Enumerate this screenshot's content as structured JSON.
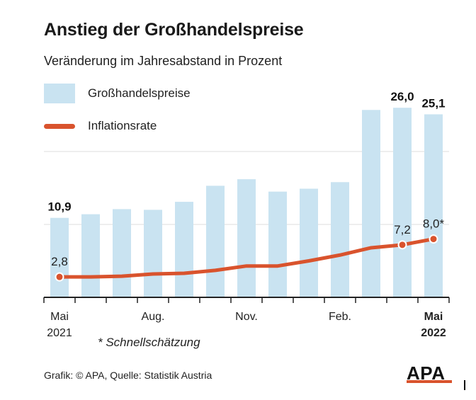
{
  "header": {
    "title": "Anstieg der Großhandelspreise",
    "subtitle": "Veränderung im Jahresabstand in Prozent"
  },
  "legend": {
    "bars_label": "Großhandelspreise",
    "line_label": "Inflationsrate"
  },
  "footnote": "* Schnellschätzung",
  "source": "Grafik: © APA, Quelle: Statistik Austria",
  "logo_text": "APA",
  "colors": {
    "bar": "#c9e3f1",
    "line": "#d9532d",
    "grid": "#dddddd",
    "axis": "#222222"
  },
  "chart_data": {
    "type": "bar",
    "title": "Anstieg der Großhandelspreise",
    "subtitle": "Veränderung im Jahresabstand in Prozent",
    "categories": [
      "Mai 2021",
      "Jun 2021",
      "Jul 2021",
      "Aug 2021",
      "Sep 2021",
      "Okt 2021",
      "Nov 2021",
      "Dez 2021",
      "Jan 2022",
      "Feb 2022",
      "Mär 2022",
      "Apr 2022",
      "Mai 2022"
    ],
    "series": [
      {
        "name": "Großhandelspreise",
        "type": "bar",
        "values": [
          10.9,
          11.4,
          12.1,
          12.0,
          13.1,
          15.3,
          16.2,
          14.5,
          14.9,
          15.8,
          25.7,
          26.0,
          25.1
        ]
      },
      {
        "name": "Inflationsrate",
        "type": "line",
        "values": [
          2.8,
          2.8,
          2.9,
          3.2,
          3.3,
          3.7,
          4.3,
          4.3,
          5.0,
          5.8,
          6.8,
          7.2,
          8.0
        ]
      }
    ],
    "bar_labels": [
      {
        "index": 0,
        "text": "10,9"
      },
      {
        "index": 11,
        "text": "26,0"
      },
      {
        "index": 12,
        "text": "25,1"
      }
    ],
    "line_labels": [
      {
        "index": 0,
        "text": "2,8"
      },
      {
        "index": 11,
        "text": "7,2"
      },
      {
        "index": 12,
        "text": "8,0*"
      }
    ],
    "x_ticks": [
      {
        "index": 0,
        "line1": "Mai",
        "line2": "2021",
        "bold": false
      },
      {
        "index": 3,
        "line1": "Aug.",
        "line2": "",
        "bold": false
      },
      {
        "index": 6,
        "line1": "Nov.",
        "line2": "",
        "bold": false
      },
      {
        "index": 9,
        "line1": "Feb.",
        "line2": "",
        "bold": false
      },
      {
        "index": 12,
        "line1": "Mai",
        "line2": "2022",
        "bold": true
      }
    ],
    "ylim": [
      0,
      30
    ],
    "grid": true
  }
}
